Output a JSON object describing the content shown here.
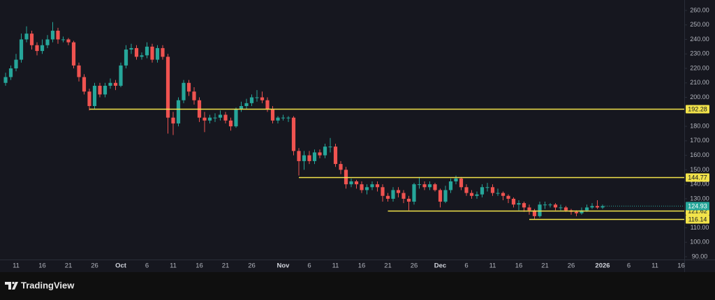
{
  "chart_data": {
    "type": "candlestick",
    "categories": [
      null,
      null,
      "11",
      null,
      null,
      null,
      null,
      "16",
      null,
      null,
      null,
      null,
      "21",
      null,
      null,
      null,
      null,
      "26",
      null,
      null,
      null,
      null,
      "Oct",
      null,
      null,
      null,
      null,
      "6",
      null,
      null,
      null,
      null,
      "11",
      null,
      null,
      null,
      null,
      "16",
      null,
      null,
      null,
      null,
      "21",
      null,
      null,
      null,
      null,
      "26",
      null,
      null,
      null,
      null,
      null,
      "Nov",
      null,
      null,
      null,
      null,
      "6",
      null,
      null,
      null,
      null,
      "11",
      null,
      null,
      null,
      null,
      "16",
      null,
      null,
      null,
      null,
      "21",
      null,
      null,
      null,
      null,
      "26",
      null,
      null,
      null,
      null,
      "Dec",
      null,
      null,
      null,
      null,
      "6",
      null,
      null,
      null,
      null,
      "11",
      null,
      null,
      null,
      null,
      "16",
      null,
      null,
      null,
      null,
      "21",
      null,
      null,
      null,
      null,
      "26",
      null,
      null,
      null,
      null,
      null,
      "2026",
      null,
      null,
      null,
      null,
      "6",
      null,
      null,
      null,
      null,
      "11",
      null,
      null,
      null,
      null,
      "16"
    ],
    "open": [
      210,
      214,
      220,
      226,
      240,
      244,
      236,
      232,
      236,
      240,
      246,
      240,
      240,
      238,
      222,
      214,
      204,
      194,
      208,
      202,
      208,
      210,
      208,
      222,
      233,
      234,
      228,
      229,
      235,
      226,
      234,
      228,
      186,
      182,
      198,
      210,
      204,
      198,
      186,
      184,
      186,
      186,
      188,
      184,
      180,
      192,
      194,
      196,
      200,
      200,
      198,
      192,
      184,
      186,
      186,
      186,
      163,
      156,
      160,
      156,
      162,
      160,
      166,
      166,
      154,
      150,
      140,
      142,
      140,
      136,
      138,
      140,
      138,
      132,
      130,
      136,
      134,
      130,
      128,
      140,
      140,
      138,
      140,
      136,
      128,
      136,
      142,
      144,
      138,
      134,
      132,
      133,
      138,
      138,
      134,
      134,
      132,
      130,
      126,
      127,
      124,
      122,
      118,
      126,
      126,
      126,
      124,
      124,
      122,
      121,
      120,
      122,
      124,
      125,
      124,
      null,
      null,
      null,
      null,
      null,
      null,
      null,
      null,
      null,
      null,
      null,
      null,
      null,
      null,
      null
    ],
    "high": [
      217,
      222,
      230,
      244,
      249,
      246,
      238,
      240,
      243,
      252,
      248,
      242,
      241,
      239,
      224,
      216,
      206,
      210,
      210,
      210,
      213,
      212,
      224,
      236,
      237,
      236,
      231,
      238,
      237,
      236,
      236,
      230,
      190,
      200,
      212,
      212,
      207,
      200,
      190,
      188,
      189,
      191,
      190,
      186,
      193,
      197,
      199,
      202,
      205,
      204,
      200,
      194,
      187,
      188,
      187,
      187,
      165,
      163,
      163,
      164,
      164,
      168,
      172,
      168,
      156,
      152,
      144,
      143,
      142,
      140,
      142,
      142,
      140,
      134,
      138,
      138,
      136,
      132,
      141,
      145,
      142,
      142,
      141,
      137,
      139,
      144,
      146,
      145,
      140,
      136,
      135,
      140,
      141,
      140,
      137,
      135,
      133,
      131,
      129,
      128,
      126,
      123,
      128,
      128,
      127,
      127,
      126,
      125,
      123,
      122,
      124,
      126,
      127,
      129,
      126,
      null,
      null,
      null,
      null,
      null,
      null,
      null,
      null,
      null,
      null,
      null,
      null,
      null,
      null,
      null
    ],
    "low": [
      208,
      212,
      218,
      224,
      238,
      233,
      229,
      230,
      234,
      238,
      237,
      238,
      236,
      220,
      211,
      202,
      191,
      192,
      200,
      200,
      206,
      205,
      207,
      220,
      230,
      226,
      226,
      227,
      224,
      224,
      226,
      175,
      174,
      180,
      196,
      201,
      195,
      183,
      176,
      182,
      183,
      184,
      182,
      177,
      179,
      190,
      192,
      194,
      197,
      196,
      190,
      182,
      182,
      184,
      183,
      160,
      146,
      150,
      154,
      154,
      158,
      158,
      162,
      152,
      147,
      137,
      138,
      137,
      134,
      133,
      136,
      135,
      128,
      128,
      128,
      131,
      127,
      122,
      126,
      137,
      136,
      136,
      135,
      124,
      127,
      134,
      140,
      136,
      132,
      130,
      130,
      131,
      135,
      132,
      132,
      129,
      127,
      124,
      122,
      121,
      119,
      116,
      117,
      123,
      124,
      122,
      122,
      121,
      119,
      118,
      119,
      121,
      123,
      123,
      123,
      null,
      null,
      null,
      null,
      null,
      null,
      null,
      null,
      null,
      null,
      null,
      null,
      null,
      null,
      null
    ],
    "close": [
      214,
      220,
      226,
      240,
      244,
      236,
      232,
      236,
      240,
      246,
      240,
      240,
      238,
      222,
      214,
      204,
      194,
      208,
      202,
      208,
      210,
      208,
      222,
      233,
      234,
      228,
      229,
      235,
      226,
      234,
      228,
      186,
      182,
      198,
      210,
      204,
      198,
      186,
      184,
      186,
      186,
      188,
      184,
      180,
      192,
      194,
      196,
      200,
      200,
      198,
      192,
      184,
      186,
      186,
      186,
      163,
      156,
      160,
      156,
      162,
      160,
      166,
      166,
      154,
      150,
      140,
      142,
      140,
      136,
      138,
      140,
      138,
      132,
      130,
      136,
      134,
      130,
      128,
      140,
      140,
      138,
      140,
      136,
      128,
      136,
      142,
      144,
      138,
      134,
      132,
      133,
      138,
      138,
      134,
      134,
      132,
      130,
      126,
      127,
      124,
      122,
      118,
      126,
      126,
      126,
      124,
      124,
      122,
      121,
      120,
      122,
      124,
      125,
      124,
      124.93,
      null,
      null,
      null,
      null,
      null,
      null,
      null,
      null,
      null,
      null,
      null,
      null,
      null,
      null,
      null
    ],
    "up_color": "#26a69a",
    "down_color": "#ef5350",
    "ylim": [
      81.8,
      267.2
    ],
    "yticks": [
      {
        "value": 90,
        "label": "90.00"
      },
      {
        "value": 100,
        "label": "100.00"
      },
      {
        "value": 110,
        "label": "110.00"
      },
      {
        "value": 120,
        "label": "120.00"
      },
      {
        "value": 130,
        "label": "130.00"
      },
      {
        "value": 140,
        "label": "140.00"
      },
      {
        "value": 150,
        "label": "150.00"
      },
      {
        "value": 160,
        "label": "160.00"
      },
      {
        "value": 170,
        "label": "170.00"
      },
      {
        "value": 180,
        "label": "180.00"
      },
      {
        "value": 190,
        "label": "190.00"
      },
      {
        "value": 200,
        "label": "200.00"
      },
      {
        "value": 210,
        "label": "210.00"
      },
      {
        "value": 220,
        "label": "220.00"
      },
      {
        "value": 230,
        "label": "230.00"
      },
      {
        "value": 240,
        "label": "240.00"
      },
      {
        "value": 250,
        "label": "250.00"
      },
      {
        "value": 260,
        "label": "260.00"
      }
    ],
    "levels": [
      {
        "value": 192.28
      },
      {
        "value": 144.77
      },
      {
        "value": 121.62
      },
      {
        "value": 116.14
      }
    ],
    "level_color": "#f2e34a"
  },
  "brand": "TradingView"
}
